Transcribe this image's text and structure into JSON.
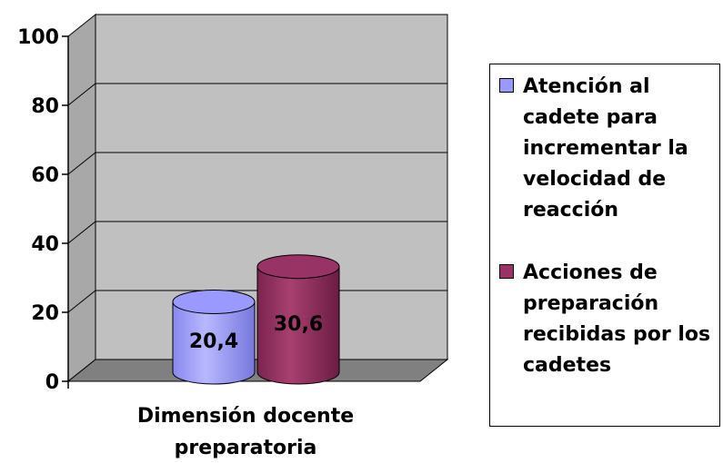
{
  "chart_data": {
    "type": "bar",
    "categories": [
      "Dimensión docente preparatoria"
    ],
    "series": [
      {
        "name": "Atención al cadete para incrementar la velocidad de reacción",
        "values": [
          20.4
        ],
        "color": "#9999ff"
      },
      {
        "name": "Acciones de preparación recibidas por los cadetes",
        "values": [
          30.6
        ],
        "color": "#993366"
      }
    ],
    "data_labels": [
      "20,4",
      "30,6"
    ],
    "y_ticks": [
      "0",
      "20",
      "40",
      "60",
      "80",
      "100"
    ],
    "ylim": [
      0,
      100
    ],
    "grid": true,
    "legend_position": "right",
    "title": "",
    "xlabel": "",
    "ylabel": "",
    "category_label_lines": [
      "Dimensión docente",
      "preparatoria"
    ],
    "style": "3d-cylinder"
  }
}
